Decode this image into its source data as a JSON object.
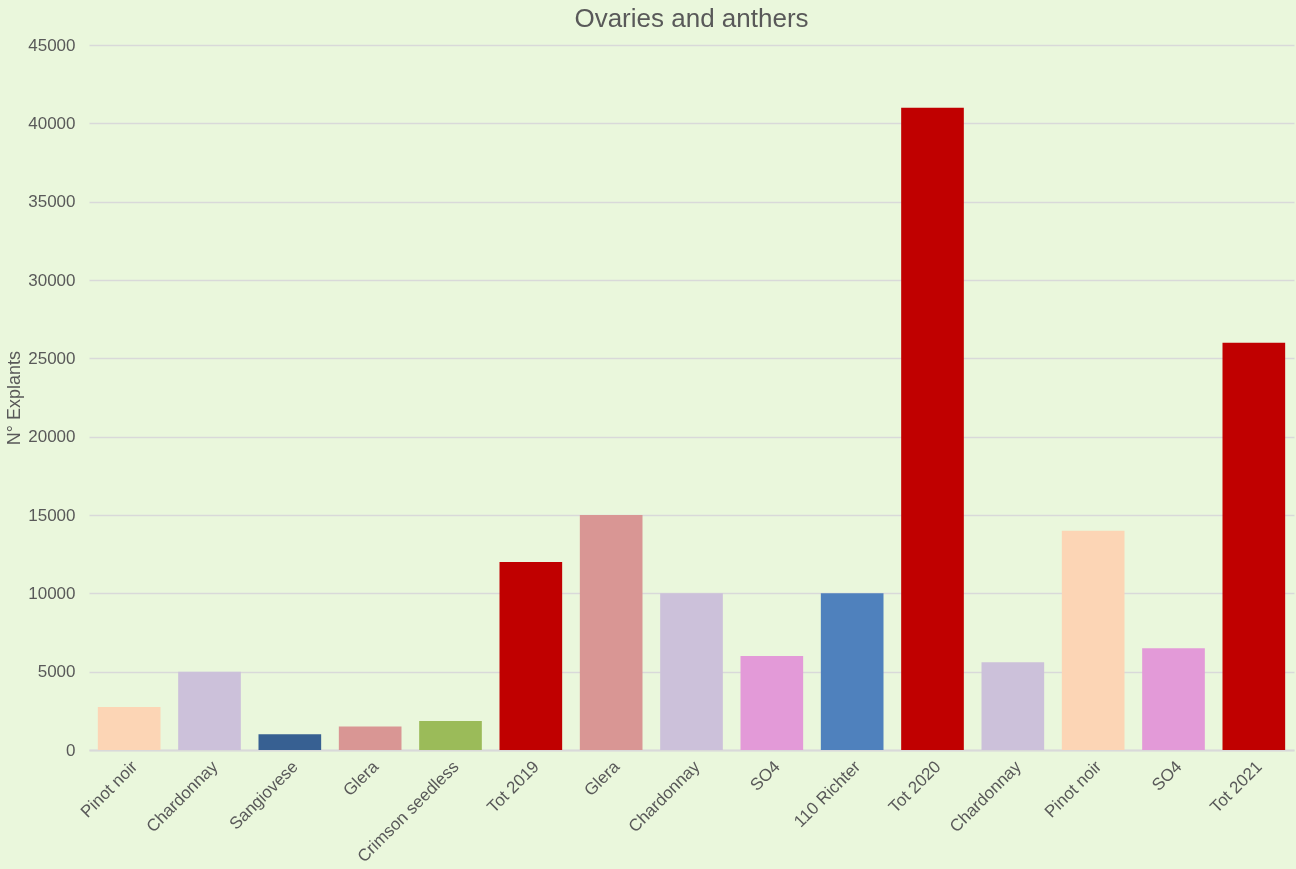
{
  "chart_data": {
    "type": "bar",
    "title": "Ovaries and anthers",
    "ylabel": "N° Explants",
    "categories": [
      "Pinot noir",
      "Chardonnay",
      "Sangiovese",
      "Glera",
      "Crimson seedless",
      "Tot 2019",
      "Glera",
      "Chardonnay",
      "SO4",
      "110 Richter",
      "Tot 2020",
      "Chardonnay",
      "Pinot noir",
      "SO4",
      "Tot 2021"
    ],
    "values": [
      2750,
      5000,
      1000,
      1500,
      1850,
      12000,
      15000,
      10000,
      6000,
      10000,
      41000,
      5600,
      14000,
      6500,
      26000
    ],
    "colors": [
      "#fcd5b5",
      "#ccc1da",
      "#376092",
      "#d99694",
      "#9bbb59",
      "#c00000",
      "#d99694",
      "#ccc1da",
      "#e39ad8",
      "#4f81bd",
      "#c00000",
      "#ccc1da",
      "#fcd5b5",
      "#e39ad8",
      "#c00000"
    ],
    "ylim": [
      0,
      45000
    ],
    "yticks": [
      0,
      5000,
      10000,
      15000,
      20000,
      25000,
      30000,
      35000,
      40000,
      45000
    ],
    "grid": "y"
  }
}
